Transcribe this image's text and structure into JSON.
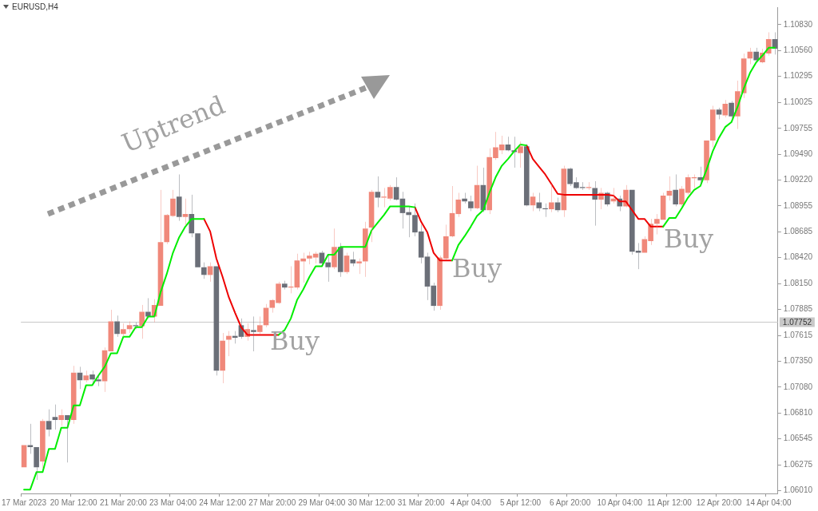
{
  "chart_data": {
    "type": "candlestick",
    "title": "EURUSD,H4",
    "categories": [
      "17 Mar 2023",
      null,
      null,
      null,
      null,
      null,
      null,
      null,
      "20 Mar 12:00",
      null,
      null,
      null,
      null,
      null,
      null,
      null,
      "21 Mar 20:00",
      null,
      null,
      null,
      null,
      null,
      null,
      null,
      "23 Mar 04:00",
      null,
      null,
      null,
      null,
      null,
      null,
      null,
      "24 Mar 12:00",
      null,
      null,
      null,
      null,
      null,
      null,
      null,
      "27 Mar 20:00",
      null,
      null,
      null,
      null,
      null,
      null,
      null,
      "29 Mar 04:00",
      null,
      null,
      null,
      null,
      null,
      null,
      null,
      "30 Mar 12:00",
      null,
      null,
      null,
      null,
      null,
      null,
      null,
      "31 Mar 20:00",
      null,
      null,
      null,
      null,
      null,
      null,
      null,
      "4 Apr 04:00",
      null,
      null,
      null,
      null,
      null,
      null,
      null,
      "5 Apr 12:00",
      null,
      null,
      null,
      null,
      null,
      null,
      null,
      "6 Apr 20:00",
      null,
      null,
      null,
      null,
      null,
      null,
      null,
      "10 Apr 04:00",
      null,
      null,
      null,
      null,
      null,
      null,
      null,
      "11 Apr 12:00",
      null,
      null,
      null,
      null,
      null,
      null,
      null,
      "12 Apr 20:00",
      null,
      null,
      null,
      null,
      null,
      null,
      null,
      "14 Apr 04:00",
      null
    ],
    "ohlc": [
      [
        1.0625,
        1.0648,
        1.0625,
        1.0648
      ],
      [
        1.0648,
        1.067,
        1.0639,
        1.0646
      ],
      [
        1.0646,
        1.0646,
        1.0612,
        1.0625
      ],
      [
        1.0631,
        1.0675,
        1.0624,
        1.0673
      ],
      [
        1.0673,
        1.0685,
        1.0657,
        1.0664
      ],
      [
        1.0677,
        1.069,
        1.0664,
        1.0674
      ],
      [
        1.0674,
        1.0685,
        1.0668,
        1.0679
      ],
      [
        1.0679,
        1.0679,
        1.063,
        1.0674
      ],
      [
        1.0674,
        1.073,
        1.067,
        1.0723
      ],
      [
        1.0723,
        1.0729,
        1.0706,
        1.0715
      ],
      [
        1.0715,
        1.0725,
        1.0713,
        1.072
      ],
      [
        1.0721,
        1.0725,
        1.0712,
        1.0716
      ],
      [
        1.0716,
        1.0721,
        1.0709,
        1.0714
      ],
      [
        1.0714,
        1.0749,
        1.0703,
        1.0746
      ],
      [
        1.0745,
        1.0788,
        1.0745,
        1.0776
      ],
      [
        1.0776,
        1.0782,
        1.076,
        1.0763
      ],
      [
        1.0763,
        1.0774,
        1.076,
        1.0768
      ],
      [
        1.0768,
        1.0776,
        1.0764,
        1.0772
      ],
      [
        1.0772,
        1.0775,
        1.0768,
        1.0771
      ],
      [
        1.0771,
        1.0793,
        1.0758,
        1.0786
      ],
      [
        1.0786,
        1.08,
        1.0779,
        1.0781
      ],
      [
        1.0781,
        1.0799,
        1.0775,
        1.0793
      ],
      [
        1.0792,
        1.0912,
        1.0792,
        1.0858
      ],
      [
        1.0858,
        1.0887,
        1.0856,
        1.0886
      ],
      [
        1.0885,
        1.0912,
        1.0884,
        1.0903
      ],
      [
        1.0905,
        1.0928,
        1.088,
        1.0884
      ],
      [
        1.0884,
        1.0903,
        1.0875,
        1.0887
      ],
      [
        1.0887,
        1.0907,
        1.0863,
        1.0867
      ],
      [
        1.0867,
        1.0867,
        1.0832,
        1.0832
      ],
      [
        1.0832,
        1.0837,
        1.082,
        1.0824
      ],
      [
        1.0824,
        1.0837,
        1.0817,
        1.0833
      ],
      [
        1.0833,
        1.0833,
        1.072,
        1.0725
      ],
      [
        1.0725,
        1.0764,
        1.0712,
        1.0756
      ],
      [
        1.0757,
        1.0766,
        1.074,
        1.0761
      ],
      [
        1.0761,
        1.0766,
        1.0753,
        1.0759
      ],
      [
        1.0772,
        1.0779,
        1.0758,
        1.076
      ],
      [
        1.076,
        1.0774,
        1.0756,
        1.0768
      ],
      [
        1.0767,
        1.0781,
        1.0745,
        1.0765
      ],
      [
        1.0765,
        1.0781,
        1.0763,
        1.0772
      ],
      [
        1.0772,
        1.0794,
        1.077,
        1.079
      ],
      [
        1.079,
        1.0799,
        1.0785,
        1.0798
      ],
      [
        1.0795,
        1.0817,
        1.0794,
        1.0815
      ],
      [
        1.0815,
        1.0818,
        1.0809,
        1.0811
      ],
      [
        1.0811,
        1.0833,
        1.0805,
        1.0812
      ],
      [
        1.0811,
        1.0846,
        1.0809,
        1.0839
      ],
      [
        1.0838,
        1.0847,
        1.0816,
        1.0841
      ],
      [
        1.0841,
        1.0848,
        1.0835,
        1.0844
      ],
      [
        1.0842,
        1.0848,
        1.0836,
        1.0846
      ],
      [
        1.0847,
        1.0849,
        1.0834,
        1.0836
      ],
      [
        1.0837,
        1.0845,
        1.0817,
        1.0832
      ],
      [
        1.0832,
        1.0872,
        1.083,
        1.0853
      ],
      [
        1.0853,
        1.0857,
        1.0822,
        1.0827
      ],
      [
        1.0827,
        1.0847,
        1.0825,
        1.0844
      ],
      [
        1.084,
        1.0848,
        1.0833,
        1.0836
      ],
      [
        1.0836,
        1.0841,
        1.0825,
        1.0838
      ],
      [
        1.0838,
        1.0879,
        1.0822,
        1.0872
      ],
      [
        1.0873,
        1.0912,
        1.0858,
        1.091
      ],
      [
        1.091,
        1.0926,
        1.0894,
        1.0904
      ],
      [
        1.0904,
        1.0914,
        1.0894,
        1.0905
      ],
      [
        1.0903,
        1.0917,
        1.0901,
        1.0915
      ],
      [
        1.0915,
        1.0925,
        1.0901,
        1.0902
      ],
      [
        1.0903,
        1.091,
        1.0872,
        1.0888
      ],
      [
        1.0889,
        1.0895,
        1.0863,
        1.0886
      ],
      [
        1.0886,
        1.0898,
        1.0864,
        1.0868
      ],
      [
        1.0869,
        1.0876,
        1.0836,
        1.0842
      ],
      [
        1.0843,
        1.0847,
        1.0798,
        1.0812
      ],
      [
        1.0813,
        1.0816,
        1.0787,
        1.0792
      ],
      [
        1.0792,
        1.0844,
        1.0788,
        1.0842
      ],
      [
        1.0841,
        1.0876,
        1.084,
        1.0864
      ],
      [
        1.0864,
        1.0916,
        1.0863,
        1.0888
      ],
      [
        1.0887,
        1.0909,
        1.0884,
        1.0902
      ],
      [
        1.0903,
        1.0909,
        1.0898,
        1.09
      ],
      [
        1.09,
        1.0906,
        1.089,
        1.0893
      ],
      [
        1.0893,
        1.0937,
        1.0892,
        1.0917
      ],
      [
        1.0917,
        1.0935,
        1.0889,
        1.0891
      ],
      [
        1.0891,
        1.0955,
        1.0887,
        1.0946
      ],
      [
        1.0945,
        1.0972,
        1.0943,
        1.0956
      ],
      [
        1.0953,
        1.0968,
        1.0949,
        1.0959
      ],
      [
        1.0959,
        1.0967,
        1.0952,
        1.0953
      ],
      [
        1.0953,
        1.0967,
        1.0935,
        1.0951
      ],
      [
        1.095,
        1.0962,
        1.0935,
        1.0957
      ],
      [
        1.0957,
        1.0959,
        1.0895,
        1.0896
      ],
      [
        1.0896,
        1.0909,
        1.089,
        1.0905
      ],
      [
        1.0899,
        1.0909,
        1.089,
        1.0893
      ],
      [
        1.0893,
        1.0898,
        1.0884,
        1.0892
      ],
      [
        1.0892,
        1.0918,
        1.0889,
        1.0899
      ],
      [
        1.0899,
        1.0904,
        1.0889,
        1.0891
      ],
      [
        1.0891,
        1.0937,
        1.0884,
        1.0934
      ],
      [
        1.0934,
        1.0935,
        1.0916,
        1.0918
      ],
      [
        1.092,
        1.0925,
        1.0913,
        1.0914
      ],
      [
        1.0915,
        1.092,
        1.0912,
        1.0914
      ],
      [
        1.0914,
        1.092,
        1.0912,
        1.0915
      ],
      [
        1.0914,
        1.0921,
        1.0875,
        1.0902
      ],
      [
        1.0902,
        1.0914,
        1.0892,
        1.0909
      ],
      [
        1.0909,
        1.091,
        1.0895,
        1.0897
      ],
      [
        1.09,
        1.0914,
        1.0898,
        1.0903
      ],
      [
        1.0903,
        1.0906,
        1.089,
        1.0895
      ],
      [
        1.0895,
        1.0917,
        1.0894,
        1.0912
      ],
      [
        1.0912,
        1.0912,
        1.0845,
        1.0848
      ],
      [
        1.0849,
        1.0857,
        1.083,
        1.0847
      ],
      [
        1.0847,
        1.0864,
        1.0847,
        1.0861
      ],
      [
        1.0859,
        1.0882,
        1.0855,
        1.0877
      ],
      [
        1.0877,
        1.0887,
        1.0866,
        1.0882
      ],
      [
        1.0881,
        1.0909,
        1.0881,
        1.0906
      ],
      [
        1.0906,
        1.0926,
        1.0901,
        1.0911
      ],
      [
        1.0912,
        1.0928,
        1.0895,
        1.0897
      ],
      [
        1.0897,
        1.0916,
        1.0895,
        1.0913
      ],
      [
        1.0909,
        1.0928,
        1.0907,
        1.0925
      ],
      [
        1.0924,
        1.0928,
        1.0914,
        1.0925
      ],
      [
        1.0925,
        1.0936,
        1.0918,
        1.0922
      ],
      [
        1.0922,
        1.0963,
        1.0919,
        1.0963
      ],
      [
        1.0963,
        1.0999,
        1.0956,
        1.0995
      ],
      [
        1.0995,
        1.0997,
        1.0985,
        1.099
      ],
      [
        1.0989,
        1.1005,
        1.0987,
        1.1001
      ],
      [
        1.1002,
        1.1004,
        1.0986,
        1.0988
      ],
      [
        1.0988,
        1.1025,
        1.0975,
        1.1014
      ],
      [
        1.1012,
        1.1053,
        1.1007,
        1.1048
      ],
      [
        1.1048,
        1.1059,
        1.1042,
        1.1055
      ],
      [
        1.1055,
        1.1059,
        1.1044,
        1.1046
      ],
      [
        1.1044,
        1.1058,
        1.1043,
        1.1054
      ],
      [
        1.1053,
        1.1075,
        1.1051,
        1.1068
      ],
      [
        1.1068,
        1.1075,
        1.1052,
        1.1058
      ]
    ],
    "colors": [
      "#f0887a",
      "#6b6f78",
      "#6b6f78",
      "#f0887a",
      "#6b6f78",
      "#6b6f78",
      "#f0887a",
      "#6b6f78",
      "#f0887a",
      "#6b6f78",
      "#f0887a",
      "#6b6f78",
      "#6b6f78",
      "#f0887a",
      "#f0887a",
      "#6b6f78",
      "#f0887a",
      "#f0887a",
      "#6b6f78",
      "#f0887a",
      "#6b6f78",
      "#f0887a",
      "#f0887a",
      "#f0887a",
      "#f0887a",
      "#6b6f78",
      "#f0887a",
      "#6b6f78",
      "#6b6f78",
      "#6b6f78",
      "#f0887a",
      "#6b6f78",
      "#f0887a",
      "#f0887a",
      "#6b6f78",
      "#6b6f78",
      "#f0887a",
      "#6b6f78",
      "#f0887a",
      "#f0887a",
      "#f0887a",
      "#f0887a",
      "#6b6f78",
      "#f0887a",
      "#f0887a",
      "#f0887a",
      "#f0887a",
      "#f0887a",
      "#6b6f78",
      "#6b6f78",
      "#f0887a",
      "#6b6f78",
      "#f0887a",
      "#6b6f78",
      "#f0887a",
      "#f0887a",
      "#f0887a",
      "#6b6f78",
      "#f0887a",
      "#f0887a",
      "#6b6f78",
      "#6b6f78",
      "#6b6f78",
      "#6b6f78",
      "#6b6f78",
      "#6b6f78",
      "#6b6f78",
      "#f0887a",
      "#f0887a",
      "#f0887a",
      "#f0887a",
      "#6b6f78",
      "#6b6f78",
      "#f0887a",
      "#6b6f78",
      "#f0887a",
      "#f0887a",
      "#f0887a",
      "#6b6f78",
      "#6b6f78",
      "#f0887a",
      "#6b6f78",
      "#f0887a",
      "#6b6f78",
      "#6b6f78",
      "#f0887a",
      "#6b6f78",
      "#f0887a",
      "#6b6f78",
      "#6b6f78",
      "#6b6f78",
      "#f0887a",
      "#6b6f78",
      "#f0887a",
      "#6b6f78",
      "#f0887a",
      "#6b6f78",
      "#f0887a",
      "#6b6f78",
      "#6b6f78",
      "#f0887a",
      "#f0887a",
      "#f0887a",
      "#f0887a",
      "#f0887a",
      "#6b6f78",
      "#f0887a",
      "#f0887a",
      "#f0887a",
      "#6b6f78",
      "#f0887a",
      "#f0887a",
      "#6b6f78",
      "#f0887a",
      "#6b6f78",
      "#f0887a",
      "#f0887a",
      "#f0887a",
      "#6b6f78",
      "#f0887a",
      "#f0887a",
      "#6b6f78"
    ],
    "series": [
      {
        "type": "line",
        "color": "#00ee00",
        "values": [
          1.0602,
          1.0602,
          1.062,
          1.062,
          1.0644,
          1.0644,
          1.0666,
          1.0666,
          1.0689,
          1.0689,
          1.071,
          1.071,
          1.072,
          1.0729,
          1.0743,
          1.0743,
          1.076,
          1.076,
          1.077,
          1.077,
          1.0781,
          1.0781,
          1.0806,
          1.0825,
          1.0847,
          1.0863,
          1.0874,
          1.0882,
          1.0882,
          1.0882,
          null,
          null,
          null,
          null,
          null,
          null,
          null,
          null,
          null,
          null,
          null,
          1.0762,
          1.0767,
          1.0779,
          1.0798,
          1.0809,
          1.0822,
          1.0833,
          1.0833,
          1.0845,
          1.0845,
          1.0853,
          1.0853,
          1.0853,
          1.0853,
          1.0853,
          1.087,
          1.0878,
          1.0886,
          1.0895,
          1.0895,
          1.0895,
          1.0895,
          1.0894,
          null,
          null,
          null,
          null,
          null,
          1.0839,
          1.0855,
          1.0864,
          1.0874,
          1.0885,
          1.0891,
          1.0909,
          1.0925,
          1.0937,
          1.0944,
          1.0952,
          1.0959,
          1.0958,
          null,
          null,
          null,
          null,
          null,
          null,
          null,
          null,
          null,
          null,
          null,
          null,
          null,
          null,
          null,
          null,
          null,
          null,
          null,
          null,
          null,
          1.0874,
          1.0883,
          1.0883,
          1.0893,
          1.0904,
          1.0912,
          1.0916,
          1.0933,
          1.0952,
          1.0966,
          1.0977,
          1.0982,
          1.0998,
          1.1017,
          1.1033,
          1.1044,
          1.1051,
          1.1059,
          1.1059
        ]
      },
      {
        "type": "line",
        "color": "#ee0000",
        "values": [
          null,
          null,
          null,
          null,
          null,
          null,
          null,
          null,
          null,
          null,
          null,
          null,
          null,
          null,
          null,
          null,
          null,
          null,
          null,
          null,
          null,
          null,
          null,
          null,
          null,
          null,
          null,
          null,
          null,
          1.0882,
          1.0869,
          1.0841,
          1.0822,
          1.0801,
          1.0785,
          1.077,
          1.0762,
          1.0762,
          1.0762,
          1.0762,
          1.0762,
          1.0762,
          null,
          null,
          null,
          null,
          null,
          null,
          null,
          null,
          null,
          null,
          null,
          null,
          null,
          null,
          null,
          null,
          null,
          null,
          null,
          null,
          null,
          1.0894,
          1.0879,
          1.0868,
          1.0847,
          1.0839,
          1.0839,
          1.0839,
          null,
          null,
          null,
          null,
          null,
          null,
          null,
          null,
          null,
          null,
          null,
          1.0958,
          1.0944,
          1.0936,
          1.0928,
          1.0918,
          1.0908,
          1.0907,
          1.0907,
          1.0907,
          1.0907,
          1.0907,
          1.0907,
          1.0907,
          1.0907,
          1.0906,
          1.09,
          1.09,
          1.0891,
          1.0882,
          1.0882,
          1.0874,
          1.0874,
          1.0874,
          null,
          null,
          null,
          null,
          null,
          null,
          null,
          null,
          null,
          null,
          null,
          null,
          null,
          null,
          null,
          null,
          null,
          null
        ]
      }
    ],
    "ylim": [
      1.0598,
      1.1101
    ],
    "yticks": [
      {
        "value": 1.0601,
        "label": "1.06010"
      },
      {
        "value": 1.06275,
        "label": "1.06275"
      },
      {
        "value": 1.06545,
        "label": "1.06545"
      },
      {
        "value": 1.0681,
        "label": "1.06810"
      },
      {
        "value": 1.0708,
        "label": "1.07080"
      },
      {
        "value": 1.0735,
        "label": "1.07350"
      },
      {
        "value": 1.07615,
        "label": "1.07615"
      },
      {
        "value": 1.07885,
        "label": "1.07885"
      },
      {
        "value": 1.0815,
        "label": "1.08150"
      },
      {
        "value": 1.0842,
        "label": "1.08420"
      },
      {
        "value": 1.08685,
        "label": "1.08685"
      },
      {
        "value": 1.08955,
        "label": "1.08955"
      },
      {
        "value": 1.0922,
        "label": "1.09220"
      },
      {
        "value": 1.0949,
        "label": "1.09490"
      },
      {
        "value": 1.09755,
        "label": "1.09755"
      },
      {
        "value": 1.10025,
        "label": "1.10025"
      },
      {
        "value": 1.10295,
        "label": "1.10295"
      },
      {
        "value": 1.1056,
        "label": "1.10560"
      },
      {
        "value": 1.1083,
        "label": "1.10830"
      }
    ],
    "ref_lines": [
      {
        "axis": "y",
        "value": 1.07752,
        "label": "1.07752",
        "color": "#c8c8c8"
      }
    ],
    "annotations": [
      "Uptrend",
      "Buy",
      "Buy",
      "Buy"
    ]
  }
}
